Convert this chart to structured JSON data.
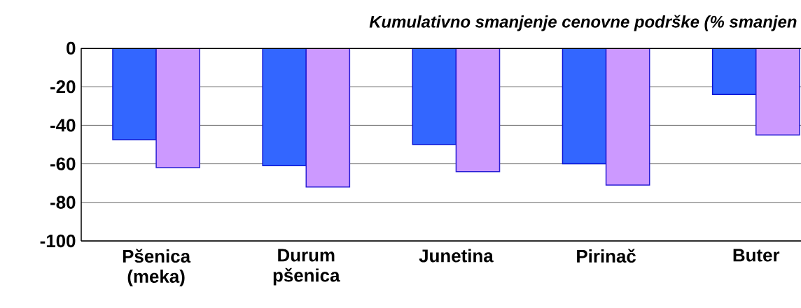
{
  "chart_data": {
    "type": "bar",
    "title": "Kumulativno smanjenje cenovne podrške (% smanjen",
    "categories": [
      "Pšenica (meka)",
      "Durum pšenica",
      "Junetina",
      "Pirinač",
      "Buter"
    ],
    "series": [
      {
        "color": "#3366ff",
        "values": [
          -47.5,
          -61,
          -50,
          -60,
          -24
        ]
      },
      {
        "color": "#cc99ff",
        "values": [
          -62,
          -72,
          -64,
          -71,
          -45
        ]
      }
    ],
    "ylim": [
      -100,
      0
    ],
    "yticks": [
      -100,
      -80,
      -60,
      -40,
      -20,
      0
    ],
    "grid": "y"
  }
}
